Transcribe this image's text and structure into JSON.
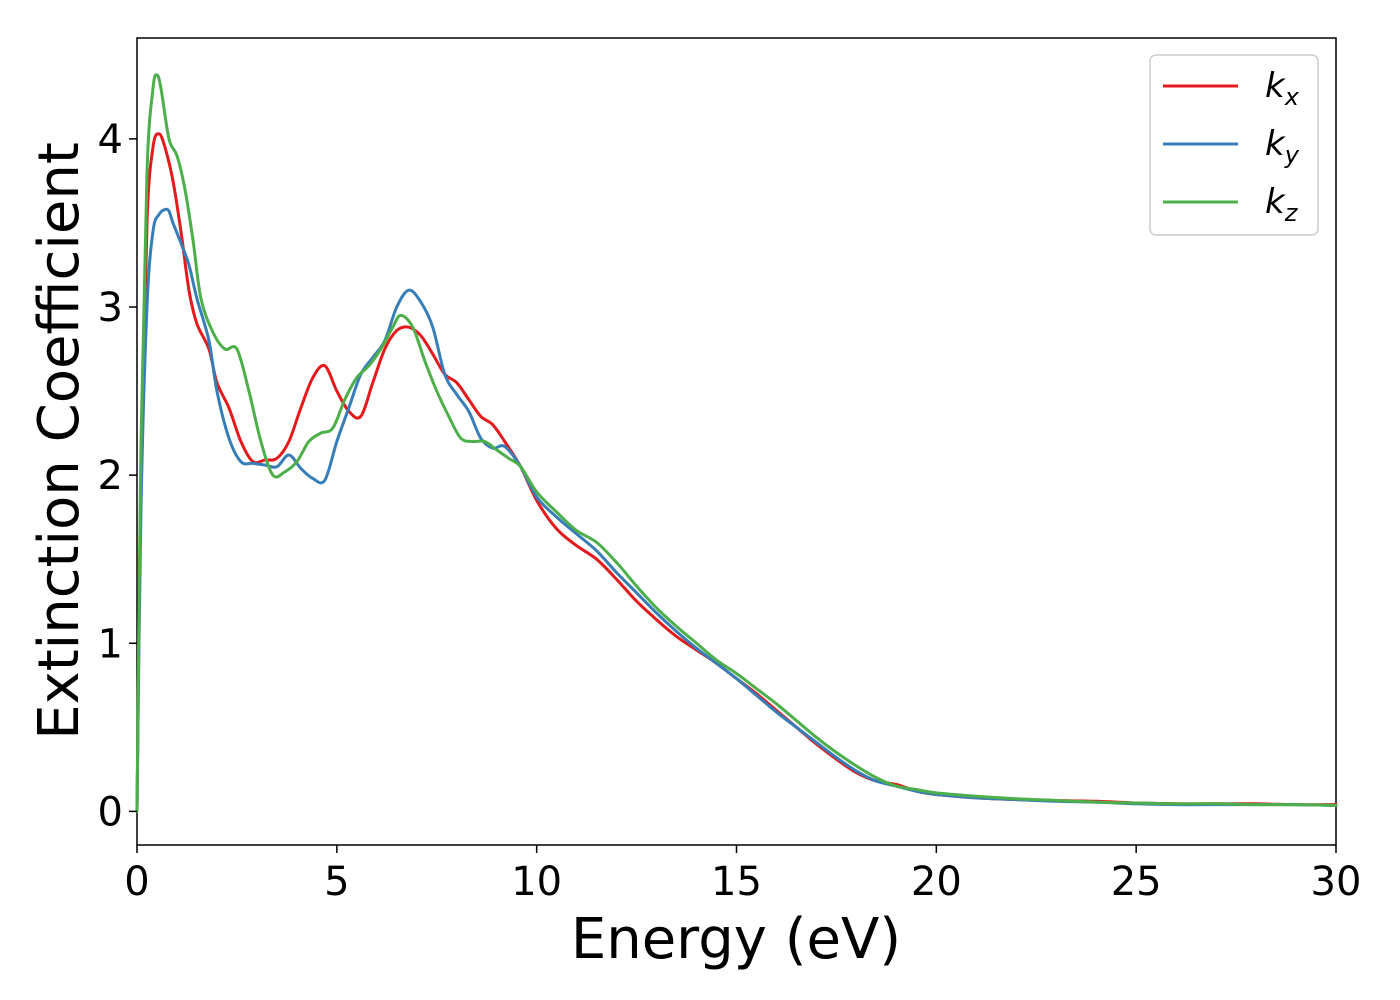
{
  "chart_data": {
    "type": "line",
    "title": "",
    "xlabel": "Energy (eV)",
    "ylabel": "Extinction Coefficient",
    "xlim": [
      0,
      30
    ],
    "ylim": [
      -0.2,
      4.6
    ],
    "xticks": [
      0,
      5,
      10,
      15,
      20,
      25,
      30
    ],
    "yticks": [
      0,
      1,
      2,
      3,
      4
    ],
    "xtick_labels": [
      "0",
      "5",
      "10",
      "15",
      "20",
      "25",
      "30"
    ],
    "ytick_labels": [
      "0",
      "1",
      "2",
      "3",
      "4"
    ],
    "grid": false,
    "legend_position": "top-right",
    "series": [
      {
        "name": "k",
        "subscript": "x",
        "color": "#e41a1c",
        "x": [
          0,
          0.1,
          0.25,
          0.4,
          0.55,
          0.7,
          0.9,
          1.1,
          1.3,
          1.5,
          1.8,
          2.0,
          2.3,
          2.6,
          2.9,
          3.2,
          3.5,
          3.8,
          4.1,
          4.4,
          4.7,
          5.0,
          5.3,
          5.6,
          5.9,
          6.2,
          6.5,
          6.8,
          7.1,
          7.4,
          7.7,
          8.0,
          8.3,
          8.6,
          8.9,
          9.2,
          9.6,
          10.0,
          10.5,
          11.0,
          11.5,
          12.0,
          12.5,
          13.0,
          13.5,
          14.0,
          14.5,
          15.0,
          15.5,
          16.0,
          16.5,
          17.0,
          17.5,
          18.0,
          18.5,
          19.0,
          19.5,
          20.0,
          21.0,
          22.0,
          23.0,
          24.0,
          25.0,
          26.0,
          27.0,
          28.0,
          29.0,
          30.0
        ],
        "y": [
          0.0,
          2.0,
          3.5,
          3.95,
          4.03,
          3.95,
          3.75,
          3.45,
          3.1,
          2.9,
          2.75,
          2.55,
          2.4,
          2.2,
          2.08,
          2.09,
          2.1,
          2.2,
          2.4,
          2.58,
          2.65,
          2.5,
          2.38,
          2.35,
          2.55,
          2.75,
          2.86,
          2.88,
          2.83,
          2.72,
          2.6,
          2.55,
          2.45,
          2.35,
          2.3,
          2.2,
          2.05,
          1.85,
          1.68,
          1.58,
          1.5,
          1.38,
          1.25,
          1.14,
          1.04,
          0.96,
          0.88,
          0.79,
          0.7,
          0.6,
          0.5,
          0.4,
          0.31,
          0.23,
          0.18,
          0.16,
          0.12,
          0.1,
          0.08,
          0.07,
          0.065,
          0.06,
          0.05,
          0.045,
          0.045,
          0.045,
          0.04,
          0.04
        ]
      },
      {
        "name": "k",
        "subscript": "y",
        "color": "#377eb8",
        "x": [
          0,
          0.1,
          0.25,
          0.4,
          0.55,
          0.7,
          0.8,
          0.9,
          1.1,
          1.3,
          1.5,
          1.8,
          2.0,
          2.3,
          2.6,
          2.9,
          3.2,
          3.5,
          3.8,
          4.1,
          4.4,
          4.7,
          5.0,
          5.3,
          5.6,
          5.9,
          6.2,
          6.5,
          6.8,
          7.1,
          7.4,
          7.7,
          8.0,
          8.3,
          8.6,
          8.9,
          9.2,
          9.6,
          10.0,
          10.5,
          11.0,
          11.5,
          12.0,
          12.5,
          13.0,
          13.5,
          14.0,
          14.5,
          15.0,
          15.5,
          16.0,
          16.5,
          17.0,
          17.5,
          18.0,
          18.5,
          19.0,
          19.5,
          20.0,
          21.0,
          22.0,
          23.0,
          24.0,
          25.0,
          26.0,
          27.0,
          28.0,
          29.0,
          30.0
        ],
        "y": [
          0.0,
          1.8,
          3.0,
          3.45,
          3.55,
          3.58,
          3.57,
          3.5,
          3.38,
          3.25,
          3.05,
          2.8,
          2.5,
          2.22,
          2.08,
          2.07,
          2.06,
          2.05,
          2.12,
          2.04,
          1.98,
          1.97,
          2.2,
          2.4,
          2.6,
          2.7,
          2.8,
          3.0,
          3.1,
          3.03,
          2.88,
          2.6,
          2.48,
          2.38,
          2.22,
          2.16,
          2.17,
          2.05,
          1.87,
          1.75,
          1.65,
          1.55,
          1.42,
          1.3,
          1.18,
          1.07,
          0.97,
          0.88,
          0.79,
          0.69,
          0.59,
          0.5,
          0.41,
          0.32,
          0.24,
          0.18,
          0.15,
          0.12,
          0.1,
          0.08,
          0.07,
          0.06,
          0.055,
          0.045,
          0.04,
          0.04,
          0.04,
          0.04,
          0.035
        ]
      },
      {
        "name": "k",
        "subscript": "z",
        "color": "#4daf4a",
        "x": [
          0,
          0.1,
          0.25,
          0.4,
          0.5,
          0.6,
          0.8,
          1.0,
          1.2,
          1.4,
          1.6,
          1.9,
          2.2,
          2.5,
          2.8,
          3.1,
          3.4,
          3.7,
          4.0,
          4.3,
          4.6,
          4.9,
          5.2,
          5.5,
          5.8,
          6.1,
          6.4,
          6.6,
          6.9,
          7.2,
          7.5,
          7.8,
          8.1,
          8.4,
          8.7,
          9.0,
          9.3,
          9.6,
          10.0,
          10.5,
          11.0,
          11.5,
          12.0,
          12.5,
          13.0,
          13.5,
          14.0,
          14.5,
          15.0,
          15.5,
          16.0,
          16.5,
          17.0,
          17.5,
          18.0,
          18.5,
          19.0,
          19.5,
          20.0,
          21.0,
          22.0,
          23.0,
          24.0,
          25.0,
          26.0,
          27.0,
          28.0,
          29.0,
          30.0
        ],
        "y": [
          0.0,
          2.2,
          3.8,
          4.3,
          4.38,
          4.3,
          4.0,
          3.9,
          3.7,
          3.4,
          3.05,
          2.85,
          2.75,
          2.75,
          2.5,
          2.2,
          2.0,
          2.02,
          2.08,
          2.2,
          2.25,
          2.28,
          2.45,
          2.58,
          2.65,
          2.75,
          2.88,
          2.95,
          2.88,
          2.68,
          2.5,
          2.35,
          2.22,
          2.2,
          2.2,
          2.15,
          2.1,
          2.05,
          1.9,
          1.78,
          1.67,
          1.6,
          1.48,
          1.34,
          1.21,
          1.1,
          1.0,
          0.9,
          0.82,
          0.73,
          0.64,
          0.54,
          0.44,
          0.35,
          0.27,
          0.2,
          0.15,
          0.13,
          0.11,
          0.09,
          0.075,
          0.065,
          0.055,
          0.05,
          0.045,
          0.045,
          0.04,
          0.04,
          0.035
        ]
      }
    ]
  }
}
